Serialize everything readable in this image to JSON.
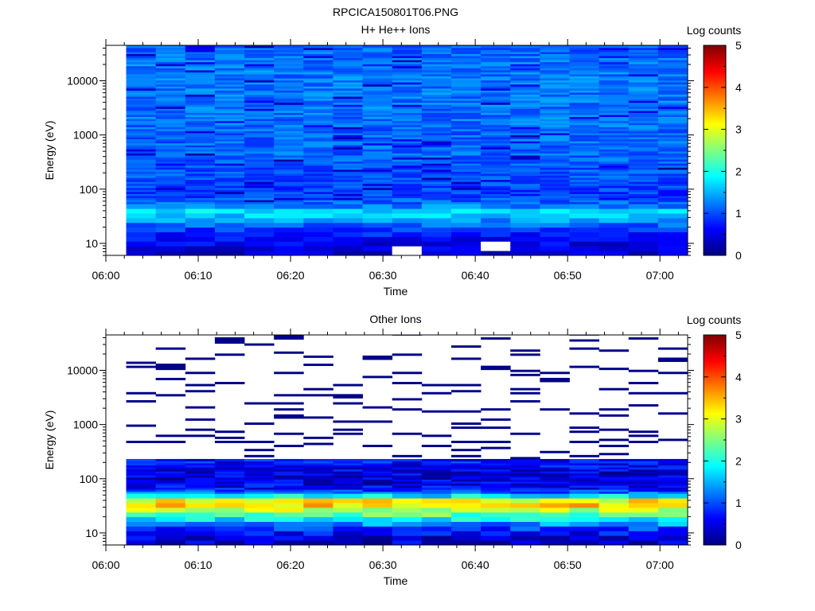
{
  "page_title": "RPCICA150801T06.PNG",
  "colors": {
    "colormap": [
      "#00007f",
      "#0000ff",
      "#007fff",
      "#00ffff",
      "#7fff7f",
      "#ffff00",
      "#ff7f00",
      "#ff0000",
      "#7f0000"
    ],
    "no_data": "#ffffff"
  },
  "chart_data": [
    {
      "type": "heatmap",
      "title": "H+ He++ Ions",
      "xlabel": "Time",
      "ylabel": "Energy (eV)",
      "x_ticks": [
        "06:00",
        "06:10",
        "06:20",
        "06:30",
        "06:40",
        "06:50",
        "07:00"
      ],
      "y_ticks": [
        "10",
        "100",
        "1000",
        "10000"
      ],
      "y_scale": "log",
      "y_range": [
        6,
        45000
      ],
      "x_range_minutes": [
        0,
        63
      ],
      "data_x_range_minutes": [
        2.2,
        63
      ],
      "time_bins": 19,
      "colorbar": {
        "label": "Log counts",
        "range": [
          0,
          5
        ],
        "ticks": [
          "0",
          "1",
          "2",
          "3",
          "4",
          "5"
        ]
      },
      "profile_description": "Dominant log counts ~1.0-1.3 (blue) across most energies; ~1.6-1.9 (light blue) near 30-40 eV; lower ~0.2-0.6 below 20 eV.",
      "energy_profile": {
        "energies_eV": [
          7,
          9,
          12,
          16,
          22,
          30,
          38,
          50,
          80,
          150,
          400,
          1500,
          6000,
          20000,
          40000
        ],
        "typical_log_counts": [
          0.4,
          0.5,
          0.6,
          0.8,
          1.1,
          1.5,
          1.8,
          1.2,
          0.9,
          1.0,
          1.1,
          1.15,
          1.2,
          1.2,
          1.1
        ]
      },
      "no_data_cells": [
        {
          "time_bin": 9,
          "energy_eV": 7
        },
        {
          "time_bin": 12,
          "energy_eV": 9
        }
      ]
    },
    {
      "type": "heatmap",
      "title": "Other Ions",
      "xlabel": "Time",
      "ylabel": "Energy (eV)",
      "x_ticks": [
        "06:00",
        "06:10",
        "06:20",
        "06:30",
        "06:40",
        "06:50",
        "07:00"
      ],
      "y_ticks": [
        "10",
        "100",
        "1000",
        "10000"
      ],
      "y_scale": "log",
      "y_range": [
        6,
        45000
      ],
      "x_range_minutes": [
        0,
        63
      ],
      "data_x_range_minutes": [
        2.2,
        63
      ],
      "time_bins": 19,
      "colorbar": {
        "label": "Log counts",
        "range": [
          0,
          5
        ],
        "ticks": [
          "0",
          "1",
          "2",
          "3",
          "4",
          "5"
        ]
      },
      "profile_description": "Peak ~3.2-3.8 log counts at 30-45 eV; ~2.0-2.5 at 20-25 eV; ~0.3-0.8 from 60-200 eV; sparse ~0 counts above 250 eV.",
      "energy_profile": {
        "energies_eV": [
          7,
          9,
          12,
          16,
          20,
          25,
          30,
          35,
          40,
          45,
          55,
          70,
          100,
          150,
          200
        ],
        "typical_log_counts": [
          0.4,
          0.5,
          0.9,
          1.5,
          2.2,
          2.6,
          3.2,
          3.4,
          3.1,
          2.2,
          1.1,
          0.6,
          0.4,
          0.5,
          0.7
        ]
      }
    }
  ]
}
